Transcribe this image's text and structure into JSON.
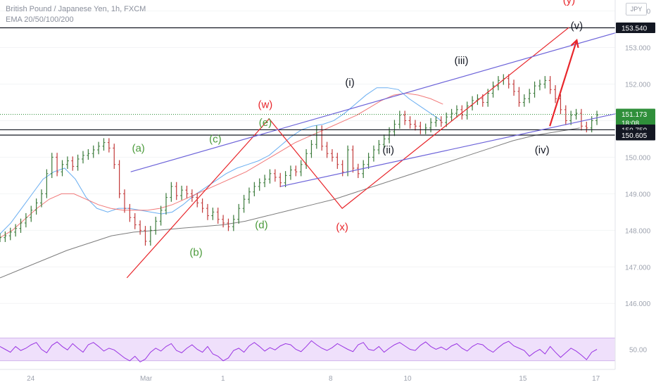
{
  "header": {
    "symbol": "British Pound / Japanese Yen, 1h, FXCM",
    "indicator": "EMA 20/50/100/200",
    "currency": "JPY"
  },
  "colors": {
    "background": "#ffffff",
    "wave_red": "#e8262b",
    "wave_black": "#131722",
    "wave_green": "#4a9a3a",
    "channel": "#6c63d9",
    "ema20": "#5aa5f0",
    "ema50": "#f06a6a",
    "ema200": "#6f6f6f",
    "rsi_line": "#9a34e3",
    "rsi_band": "#efe0fb",
    "axis_text": "#9ea3af",
    "price_badge": "#2f8f3a"
  },
  "chart_data": {
    "type": "line",
    "title": "British Pound / Japanese Yen, 1h, FXCM",
    "instrument": "GBPJPY",
    "timeframe": "1h",
    "y_axis": {
      "ticks": [
        154.0,
        153.0,
        152.0,
        151.0,
        150.0,
        149.0,
        148.0,
        147.0,
        146.0
      ],
      "ylim": [
        145.35,
        154.3
      ]
    },
    "x_axis": {
      "ticks": [
        "24",
        "Mar",
        "1",
        "8",
        "10",
        "15",
        "17"
      ],
      "tick_index": [
        8,
        38,
        58,
        86,
        106,
        136,
        155
      ],
      "xlim": [
        0,
        160
      ]
    },
    "series": [
      {
        "name": "GBPJPY",
        "values": [
          147.8,
          147.85,
          147.95,
          148.05,
          148.2,
          148.35,
          148.55,
          148.75,
          149.0,
          149.55,
          150.0,
          149.6,
          149.8,
          149.9,
          149.75,
          149.95,
          150.05,
          150.1,
          150.2,
          150.3,
          150.4,
          150.25,
          149.8,
          149.0,
          148.6,
          148.35,
          148.15,
          148.0,
          147.7,
          148.0,
          148.25,
          148.55,
          148.9,
          149.2,
          148.95,
          149.1,
          149.0,
          148.9,
          148.75,
          148.6,
          148.4,
          148.5,
          148.3,
          148.2,
          148.1,
          148.3,
          148.6,
          148.85,
          149.05,
          149.2,
          149.3,
          149.4,
          149.55,
          149.45,
          149.3,
          149.5,
          149.65,
          149.6,
          149.8,
          150.1,
          150.35,
          150.75,
          150.3,
          150.1,
          150.0,
          149.8,
          149.6,
          150.2,
          149.7,
          149.55,
          149.8,
          150.0,
          150.2,
          150.35,
          150.5,
          150.7,
          150.9,
          151.15,
          151.0,
          150.9,
          150.85,
          150.75,
          150.8,
          150.95,
          151.0,
          150.95,
          151.1,
          151.2,
          151.3,
          151.15,
          151.4,
          151.55,
          151.6,
          151.5,
          151.75,
          151.95,
          152.1,
          152.15,
          152.0,
          151.8,
          151.5,
          151.6,
          151.75,
          151.95,
          152.0,
          152.1,
          151.85,
          151.6,
          151.3,
          151.0,
          151.15,
          151.2,
          150.85,
          150.8,
          151.0,
          151.15
        ],
        "x_start": 0
      },
      {
        "name": "EMA 20",
        "values": [
          147.9,
          148.2,
          148.6,
          149.0,
          149.4,
          149.6,
          149.7,
          149.4,
          148.9,
          148.6,
          148.5,
          148.6,
          148.6,
          148.55,
          148.5,
          148.45,
          148.5,
          148.7,
          148.95,
          149.15,
          149.35,
          149.55,
          149.7,
          149.8,
          149.9,
          150.05,
          150.3,
          150.55,
          150.75,
          150.85,
          150.9,
          151.0,
          151.2,
          151.45,
          151.7,
          151.9,
          151.9,
          151.85,
          151.6,
          151.4,
          151.2,
          151.0
        ],
        "x_start": 0,
        "x_step": 2.8
      },
      {
        "name": "EMA 50",
        "values": [
          147.8,
          148.0,
          148.3,
          148.6,
          148.85,
          149.0,
          149.0,
          148.85,
          148.7,
          148.6,
          148.55,
          148.55,
          148.55,
          148.6,
          148.7,
          148.85,
          149.0,
          149.15,
          149.3,
          149.45,
          149.6,
          149.8,
          150.0,
          150.2,
          150.4,
          150.55,
          150.7,
          150.85,
          151.0,
          151.15,
          151.35,
          151.55,
          151.7,
          151.75,
          151.7,
          151.6,
          151.45
        ],
        "x_start": 0,
        "x_step": 3.2
      },
      {
        "name": "EMA 200",
        "values": [
          146.7,
          146.95,
          147.2,
          147.45,
          147.65,
          147.85,
          147.95,
          148.0,
          148.05,
          148.1,
          148.15,
          148.25,
          148.4,
          148.55,
          148.7,
          148.85,
          149.05,
          149.25,
          149.45,
          149.65,
          149.85,
          150.05,
          150.25,
          150.45,
          150.6,
          150.7,
          150.8
        ],
        "x_start": 0,
        "x_step": 5.8
      }
    ],
    "price_labels": [
      {
        "value": 153.54,
        "label": "153.540",
        "style": "dark"
      },
      {
        "value": 151.173,
        "label": "151.173",
        "sub": "18:08",
        "style": "green"
      },
      {
        "value": 150.75,
        "label": "150.750",
        "style": "dark"
      },
      {
        "value": 150.605,
        "label": "150.605",
        "style": "dark"
      }
    ],
    "horizontal_lines": [
      153.54,
      150.75,
      150.605
    ],
    "annotations": [
      {
        "text": "(y)",
        "x": 148,
        "y": 154.2,
        "color": "red"
      },
      {
        "text": "(v)",
        "x": 150,
        "y": 153.5,
        "color": "black"
      },
      {
        "text": "(iii)",
        "x": 120,
        "y": 152.55,
        "color": "black"
      },
      {
        "text": "(i)",
        "x": 91,
        "y": 151.95,
        "color": "black"
      },
      {
        "text": "(w)",
        "x": 69,
        "y": 151.35,
        "color": "red"
      },
      {
        "text": "(e)",
        "x": 69,
        "y": 150.85,
        "color": "green"
      },
      {
        "text": "(c)",
        "x": 56,
        "y": 150.4,
        "color": "green"
      },
      {
        "text": "(a)",
        "x": 36,
        "y": 150.15,
        "color": "green"
      },
      {
        "text": "(ii)",
        "x": 101,
        "y": 150.1,
        "color": "black"
      },
      {
        "text": "(iv)",
        "x": 141,
        "y": 150.1,
        "color": "black"
      },
      {
        "text": "(d)",
        "x": 68,
        "y": 148.05,
        "color": "green"
      },
      {
        "text": "(x)",
        "x": 89,
        "y": 148.0,
        "color": "red"
      },
      {
        "text": "(b)",
        "x": 51,
        "y": 147.3,
        "color": "green"
      }
    ],
    "drawings": {
      "wxy_path": [
        [
          33,
          146.7
        ],
        [
          70,
          151.05
        ],
        [
          89,
          148.6
        ],
        [
          148,
          153.55
        ]
      ],
      "channel_upper": [
        [
          34,
          149.6
        ],
        [
          165,
          153.55
        ]
      ],
      "channel_lower": [
        [
          73,
          149.2
        ],
        [
          165,
          151.3
        ]
      ],
      "projection_arrow": [
        [
          143,
          150.85
        ],
        [
          150,
          153.2
        ]
      ]
    },
    "rsi": {
      "band_upper": 70,
      "band_lower": 30,
      "ylim": [
        15,
        85
      ],
      "tick": "50.00",
      "values": [
        55,
        50,
        45,
        55,
        48,
        52,
        58,
        62,
        50,
        44,
        57,
        63,
        55,
        49,
        60,
        52,
        45,
        58,
        62,
        55,
        47,
        52,
        49,
        42,
        35,
        30,
        38,
        28,
        33,
        45,
        52,
        47,
        55,
        60,
        48,
        44,
        52,
        58,
        50,
        45,
        55,
        42,
        38,
        30,
        35,
        48,
        52,
        45,
        56,
        62,
        55,
        47,
        53,
        49,
        56,
        60,
        58,
        50,
        46,
        55,
        65,
        58,
        52,
        48,
        53,
        60,
        55,
        50,
        46,
        58,
        62,
        50,
        48,
        55,
        45,
        52,
        58,
        62,
        56,
        50,
        48,
        57,
        63,
        55,
        50,
        54,
        49,
        56,
        60,
        52,
        47,
        55,
        60,
        58,
        50,
        45,
        53,
        60,
        64,
        56,
        52,
        48,
        38,
        45,
        50,
        42,
        55,
        45,
        36,
        44,
        52,
        47,
        40,
        32,
        45,
        50
      ]
    }
  }
}
